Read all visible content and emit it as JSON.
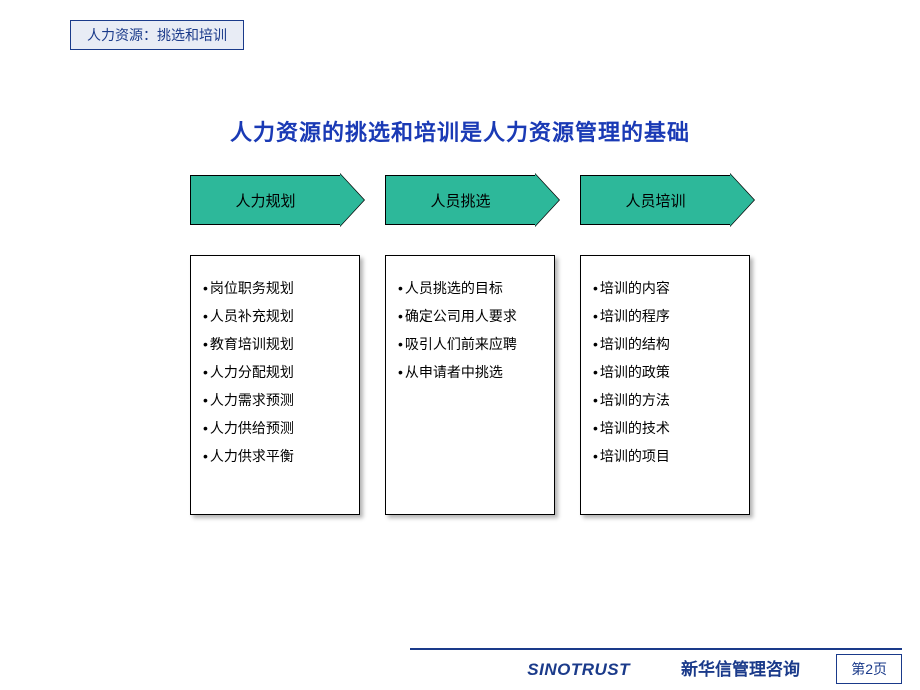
{
  "header": {
    "badge": "人力资源：挑选和培训",
    "badge_bg": "#e8ecf5",
    "badge_border": "#1a3a8a",
    "badge_color": "#1a3a8a"
  },
  "title": {
    "text": "人力资源的挑选和培训是人力资源管理的基础",
    "color": "#1a3ab5",
    "fontsize": 22
  },
  "diagram": {
    "arrow_fill": "#2db89a",
    "arrow_border": "#000000",
    "box_border": "#000000",
    "box_bg": "#ffffff",
    "columns": [
      {
        "label": "人力规划",
        "items": [
          "岗位职务规划",
          "人员补充规划",
          "教育培训规划",
          "人力分配规划",
          "人力需求预测",
          "人力供给预测",
          "人力供求平衡"
        ]
      },
      {
        "label": "人员挑选",
        "items": [
          "人员挑选的目标",
          "确定公司用人要求",
          "吸引人们前来应聘",
          "从申请者中挑选"
        ]
      },
      {
        "label": "人员培训",
        "items": [
          "培训的内容",
          "培训的程序",
          "培训的结构",
          "培训的政策",
          "培训的方法",
          "培训的技术",
          "培训的项目"
        ]
      }
    ]
  },
  "footer": {
    "brand_en": "SINOTRUST",
    "brand_cn": "新华信管理咨询",
    "page": "第2页",
    "line_color": "#1a3a8a",
    "text_color": "#1a3a8a"
  }
}
